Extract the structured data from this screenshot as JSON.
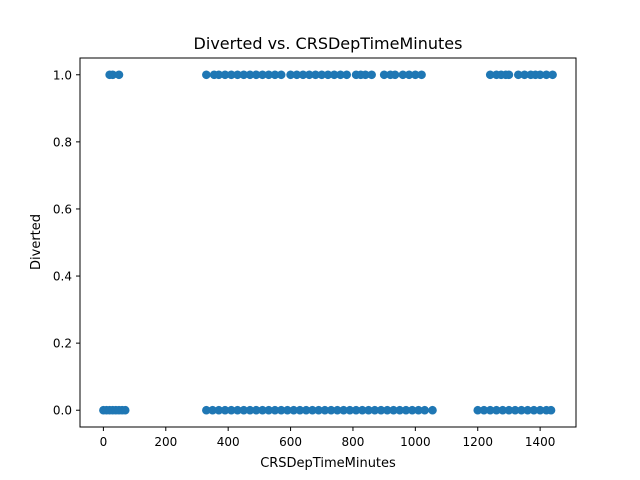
{
  "chart_data": {
    "type": "scatter",
    "title": "Diverted vs. CRSDepTimeMinutes",
    "xlabel": "CRSDepTimeMinutes",
    "ylabel": "Diverted",
    "xlim": [
      -75,
      1515
    ],
    "ylim": [
      -0.05,
      1.05
    ],
    "xticks": [
      0,
      200,
      400,
      600,
      800,
      1000,
      1200,
      1400
    ],
    "yticks": [
      0.0,
      0.2,
      0.4,
      0.6,
      0.8,
      1.0
    ],
    "xtick_labels": [
      "0",
      "200",
      "400",
      "600",
      "800",
      "1000",
      "1200",
      "1400"
    ],
    "ytick_labels": [
      "0.0",
      "0.2",
      "0.4",
      "0.6",
      "0.8",
      "1.0"
    ],
    "grid": false,
    "marker_color": "#1f77b4",
    "series": [
      {
        "points": [
          {
            "x": 0,
            "y": 0
          },
          {
            "x": 10,
            "y": 0
          },
          {
            "x": 20,
            "y": 0
          },
          {
            "x": 30,
            "y": 0
          },
          {
            "x": 40,
            "y": 0
          },
          {
            "x": 50,
            "y": 0
          },
          {
            "x": 60,
            "y": 0
          },
          {
            "x": 70,
            "y": 0
          },
          {
            "x": 330,
            "y": 0
          },
          {
            "x": 350,
            "y": 0
          },
          {
            "x": 370,
            "y": 0
          },
          {
            "x": 390,
            "y": 0
          },
          {
            "x": 410,
            "y": 0
          },
          {
            "x": 430,
            "y": 0
          },
          {
            "x": 450,
            "y": 0
          },
          {
            "x": 470,
            "y": 0
          },
          {
            "x": 490,
            "y": 0
          },
          {
            "x": 510,
            "y": 0
          },
          {
            "x": 530,
            "y": 0
          },
          {
            "x": 550,
            "y": 0
          },
          {
            "x": 570,
            "y": 0
          },
          {
            "x": 590,
            "y": 0
          },
          {
            "x": 610,
            "y": 0
          },
          {
            "x": 630,
            "y": 0
          },
          {
            "x": 650,
            "y": 0
          },
          {
            "x": 670,
            "y": 0
          },
          {
            "x": 690,
            "y": 0
          },
          {
            "x": 710,
            "y": 0
          },
          {
            "x": 730,
            "y": 0
          },
          {
            "x": 750,
            "y": 0
          },
          {
            "x": 770,
            "y": 0
          },
          {
            "x": 790,
            "y": 0
          },
          {
            "x": 810,
            "y": 0
          },
          {
            "x": 830,
            "y": 0
          },
          {
            "x": 850,
            "y": 0
          },
          {
            "x": 870,
            "y": 0
          },
          {
            "x": 890,
            "y": 0
          },
          {
            "x": 910,
            "y": 0
          },
          {
            "x": 930,
            "y": 0
          },
          {
            "x": 950,
            "y": 0
          },
          {
            "x": 970,
            "y": 0
          },
          {
            "x": 990,
            "y": 0
          },
          {
            "x": 1010,
            "y": 0
          },
          {
            "x": 1030,
            "y": 0
          },
          {
            "x": 1055,
            "y": 0
          },
          {
            "x": 1200,
            "y": 0
          },
          {
            "x": 1220,
            "y": 0
          },
          {
            "x": 1240,
            "y": 0
          },
          {
            "x": 1260,
            "y": 0
          },
          {
            "x": 1280,
            "y": 0
          },
          {
            "x": 1300,
            "y": 0
          },
          {
            "x": 1320,
            "y": 0
          },
          {
            "x": 1340,
            "y": 0
          },
          {
            "x": 1360,
            "y": 0
          },
          {
            "x": 1380,
            "y": 0
          },
          {
            "x": 1400,
            "y": 0
          },
          {
            "x": 1420,
            "y": 0
          },
          {
            "x": 1435,
            "y": 0
          },
          {
            "x": 20,
            "y": 1
          },
          {
            "x": 30,
            "y": 1
          },
          {
            "x": 50,
            "y": 1
          },
          {
            "x": 330,
            "y": 1
          },
          {
            "x": 355,
            "y": 1
          },
          {
            "x": 370,
            "y": 1
          },
          {
            "x": 390,
            "y": 1
          },
          {
            "x": 410,
            "y": 1
          },
          {
            "x": 430,
            "y": 1
          },
          {
            "x": 450,
            "y": 1
          },
          {
            "x": 470,
            "y": 1
          },
          {
            "x": 490,
            "y": 1
          },
          {
            "x": 510,
            "y": 1
          },
          {
            "x": 530,
            "y": 1
          },
          {
            "x": 550,
            "y": 1
          },
          {
            "x": 570,
            "y": 1
          },
          {
            "x": 600,
            "y": 1
          },
          {
            "x": 620,
            "y": 1
          },
          {
            "x": 640,
            "y": 1
          },
          {
            "x": 660,
            "y": 1
          },
          {
            "x": 680,
            "y": 1
          },
          {
            "x": 700,
            "y": 1
          },
          {
            "x": 720,
            "y": 1
          },
          {
            "x": 740,
            "y": 1
          },
          {
            "x": 760,
            "y": 1
          },
          {
            "x": 780,
            "y": 1
          },
          {
            "x": 810,
            "y": 1
          },
          {
            "x": 825,
            "y": 1
          },
          {
            "x": 840,
            "y": 1
          },
          {
            "x": 860,
            "y": 1
          },
          {
            "x": 900,
            "y": 1
          },
          {
            "x": 920,
            "y": 1
          },
          {
            "x": 935,
            "y": 1
          },
          {
            "x": 960,
            "y": 1
          },
          {
            "x": 980,
            "y": 1
          },
          {
            "x": 1000,
            "y": 1
          },
          {
            "x": 1020,
            "y": 1
          },
          {
            "x": 1240,
            "y": 1
          },
          {
            "x": 1260,
            "y": 1
          },
          {
            "x": 1275,
            "y": 1
          },
          {
            "x": 1290,
            "y": 1
          },
          {
            "x": 1300,
            "y": 1
          },
          {
            "x": 1330,
            "y": 1
          },
          {
            "x": 1350,
            "y": 1
          },
          {
            "x": 1370,
            "y": 1
          },
          {
            "x": 1385,
            "y": 1
          },
          {
            "x": 1400,
            "y": 1
          },
          {
            "x": 1420,
            "y": 1
          },
          {
            "x": 1440,
            "y": 1
          }
        ]
      }
    ]
  }
}
